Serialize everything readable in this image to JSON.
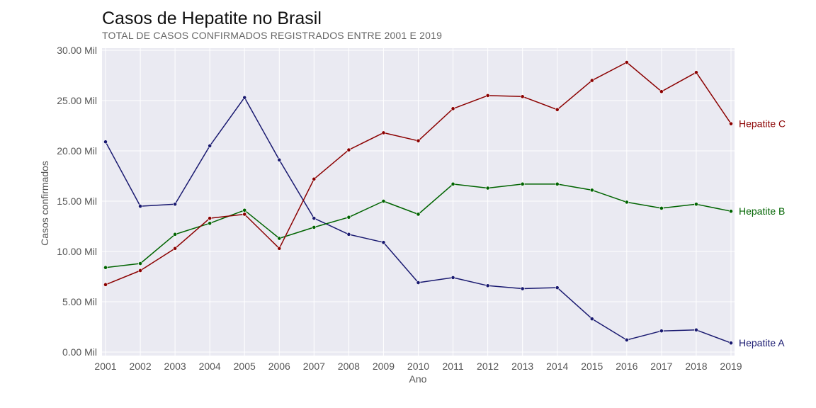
{
  "chart_data": {
    "type": "line",
    "title": "Casos de Hepatite no Brasil",
    "subtitle": "TOTAL DE CASOS CONFIRMADOS REGISTRADOS ENTRE 2001 E 2019",
    "xlabel": "Ano",
    "ylabel": "Casos confirmados",
    "x": [
      2001,
      2002,
      2003,
      2004,
      2005,
      2006,
      2007,
      2008,
      2009,
      2010,
      2011,
      2012,
      2013,
      2014,
      2015,
      2016,
      2017,
      2018,
      2019
    ],
    "ylim": [
      0,
      30000
    ],
    "y_ticks": [
      0,
      5000,
      10000,
      15000,
      20000,
      25000,
      30000
    ],
    "y_tick_labels": [
      "0.00 Mil",
      "5.00 Mil",
      "10.00 Mil",
      "15.00 Mil",
      "20.00 Mil",
      "25.00 Mil",
      "30.00 Mil"
    ],
    "grid": true,
    "series": [
      {
        "name": "Hepatite A",
        "color": "#191970",
        "values": [
          20900,
          14500,
          14700,
          20500,
          25300,
          19100,
          13300,
          11700,
          10900,
          6900,
          7400,
          6600,
          6300,
          6400,
          3300,
          1200,
          2100,
          2200,
          900
        ]
      },
      {
        "name": "Hepatite B",
        "color": "#006400",
        "values": [
          8400,
          8800,
          11700,
          12800,
          14100,
          11300,
          12400,
          13400,
          15000,
          13700,
          16700,
          16300,
          16700,
          16700,
          16100,
          14900,
          14300,
          14700,
          14000
        ]
      },
      {
        "name": "Hepatite C",
        "color": "#8b0000",
        "values": [
          6700,
          8100,
          10300,
          13300,
          13700,
          10300,
          17200,
          20100,
          21800,
          21000,
          24200,
          25500,
          25400,
          24100,
          27000,
          28800,
          25900,
          27800,
          22700
        ]
      }
    ]
  }
}
